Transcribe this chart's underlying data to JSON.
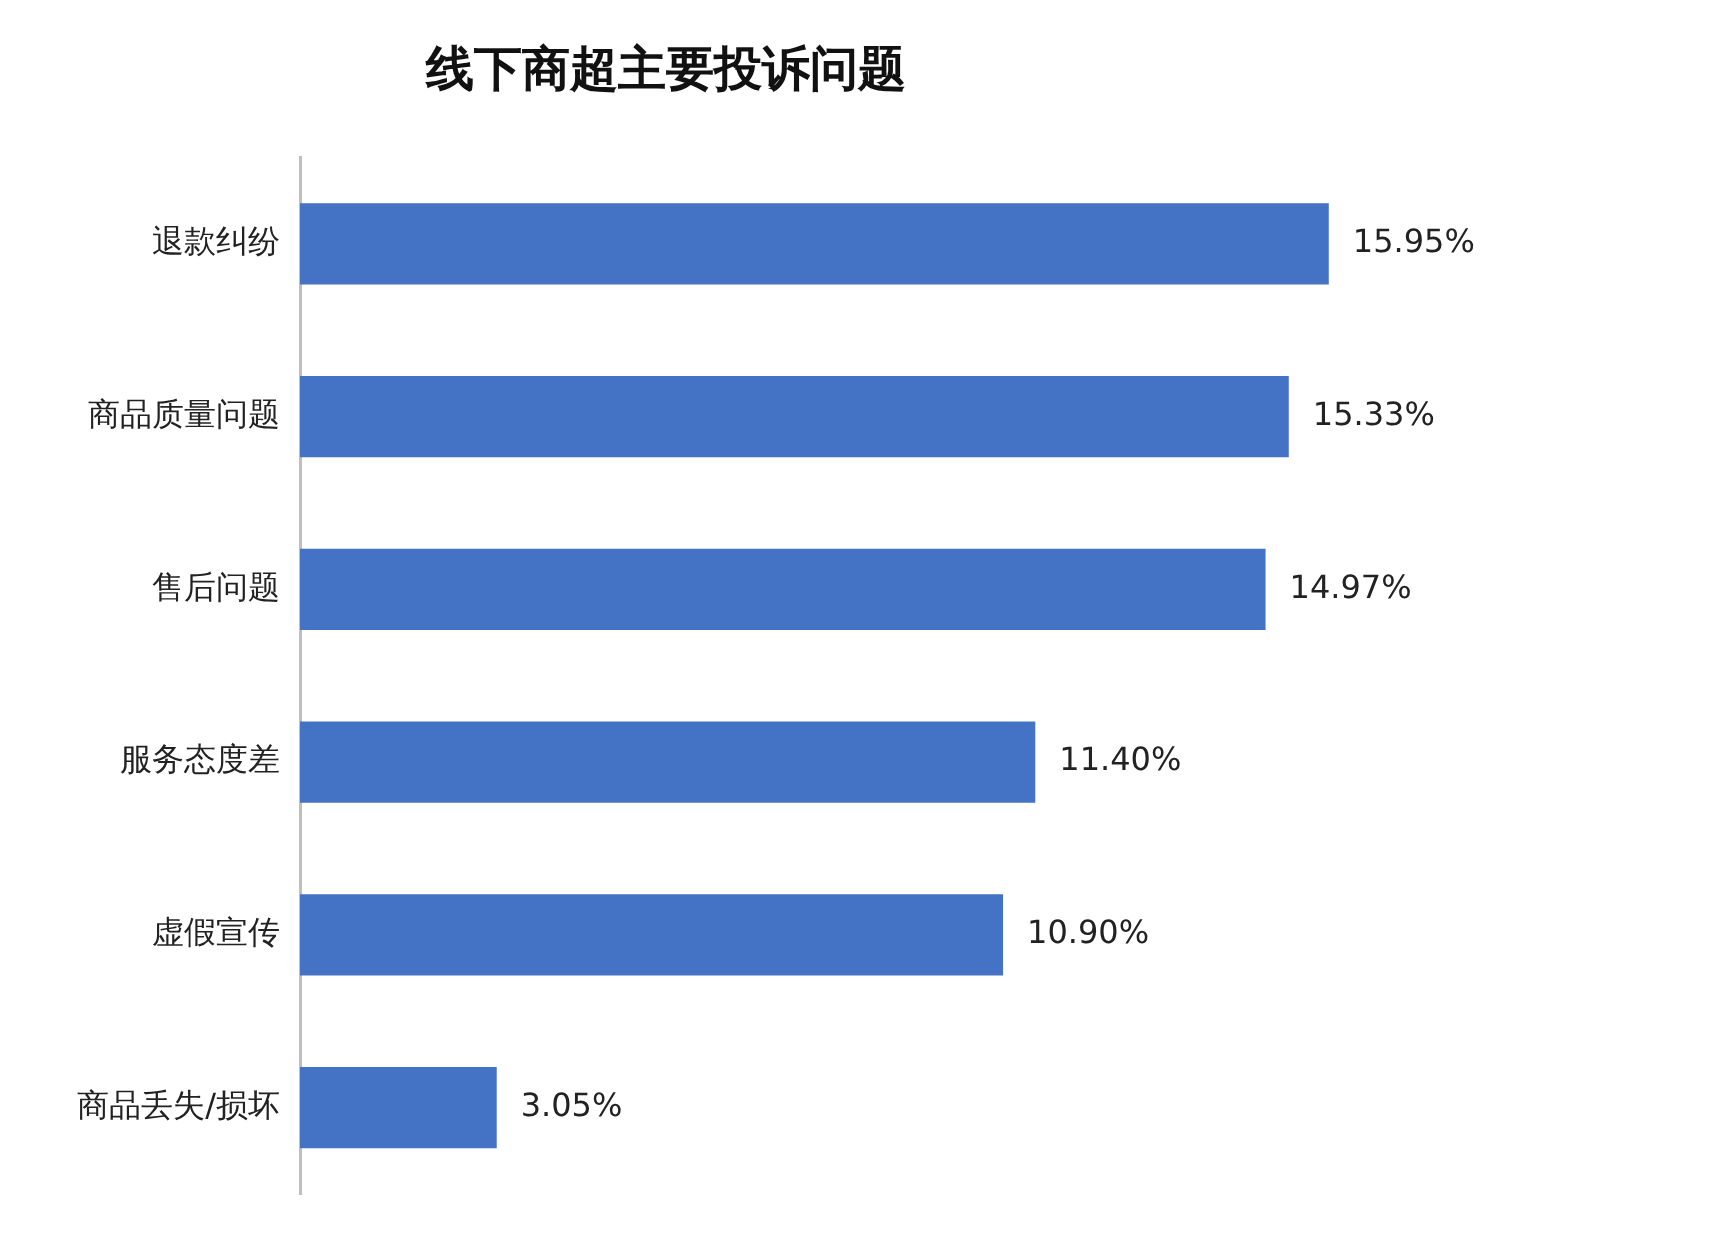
{
  "chart_data": {
    "type": "bar",
    "orientation": "horizontal",
    "title": "线下商超主要投诉问题",
    "categories": [
      "退款纠纷",
      "商品质量问题",
      "售后问题",
      "服务态度差",
      "虚假宣传",
      "商品丢失/损坏"
    ],
    "values": [
      15.95,
      15.33,
      14.97,
      11.4,
      10.9,
      3.05
    ],
    "value_labels": [
      "15.95%",
      "15.33%",
      "14.97%",
      "11.40%",
      "10.90%",
      "3.05%"
    ],
    "color": "#4472c4",
    "tick_labels": "y"
  }
}
